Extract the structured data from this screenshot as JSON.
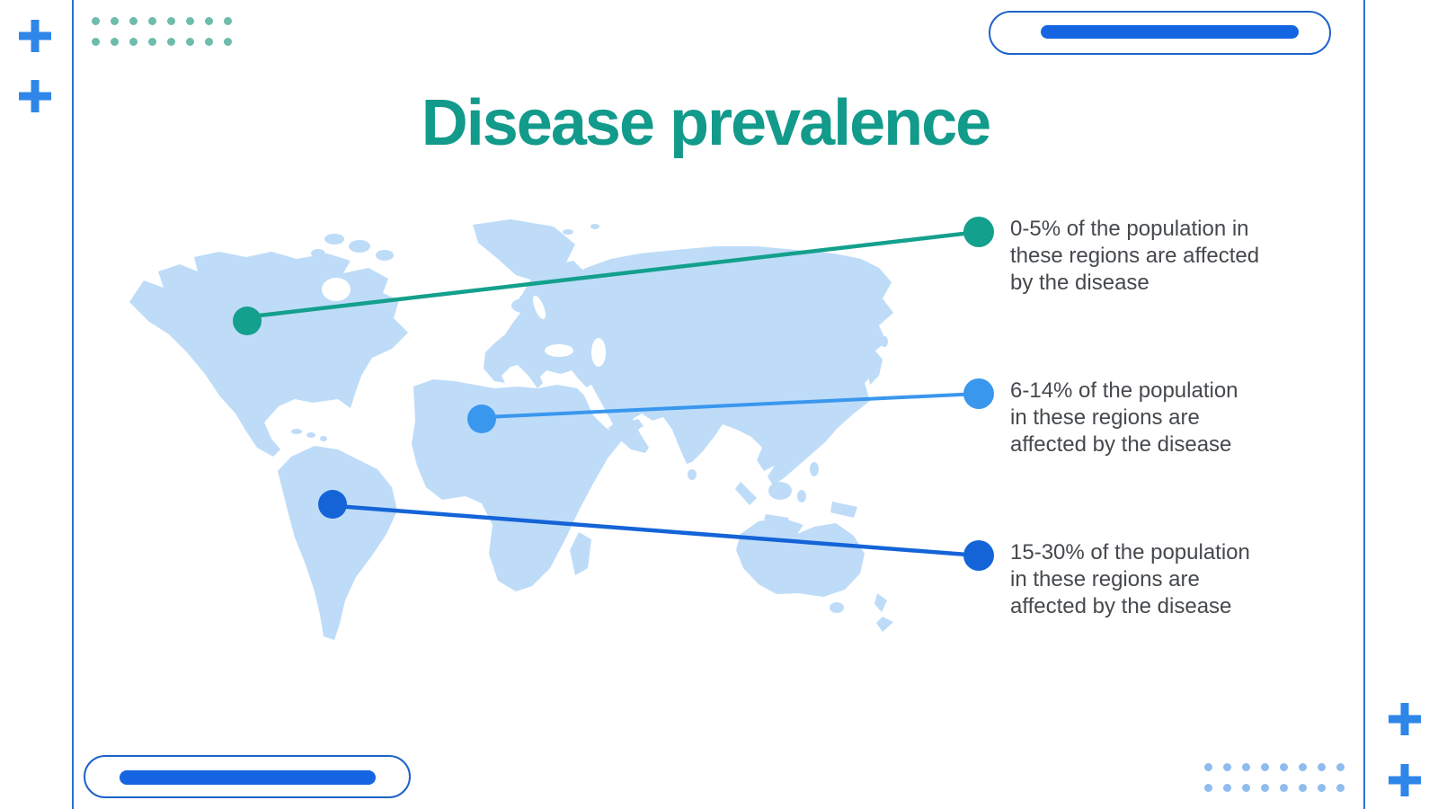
{
  "slide": {
    "title": "Disease prevalence",
    "callouts": [
      {
        "range": "0-5%",
        "label_lines": [
          "0-5% of the population in",
          "these regions are affected",
          "by the disease"
        ],
        "marker_region": "north-america",
        "color": "#13a08c"
      },
      {
        "range": "6-14%",
        "label_lines": [
          "6-14% of the population",
          "in these regions are",
          "affected by the disease"
        ],
        "marker_region": "west-africa",
        "color": "#3a97ee"
      },
      {
        "range": "15-30%",
        "label_lines": [
          "15-30% of the population",
          "in these regions are",
          "affected by the disease"
        ],
        "marker_region": "south-america",
        "color": "#1464d8"
      }
    ]
  },
  "decorations": {
    "dot_grids": [
      {
        "position": "top-left",
        "rows": 2,
        "cols": 8,
        "color": "#6dbcac"
      },
      {
        "position": "bottom-right",
        "rows": 2,
        "cols": 8,
        "color": "#8fbcee"
      }
    ],
    "plus_icons": 4,
    "capsules": 2
  },
  "colors": {
    "title_teal": "#129a8b",
    "marker_teal": "#13a08c",
    "marker_blue_mid": "#3a97ee",
    "marker_blue_dark": "#1464d8",
    "map_fill": "#bedcf8",
    "text_gray": "#45494d",
    "accent_blue": "#2e86e8",
    "line_blue": "#2b6fd4",
    "capsule_border": "#1f63c9",
    "capsule_bar": "#1565e2",
    "dots_teal": "#6dbcac",
    "dots_blue": "#8fbcee"
  }
}
